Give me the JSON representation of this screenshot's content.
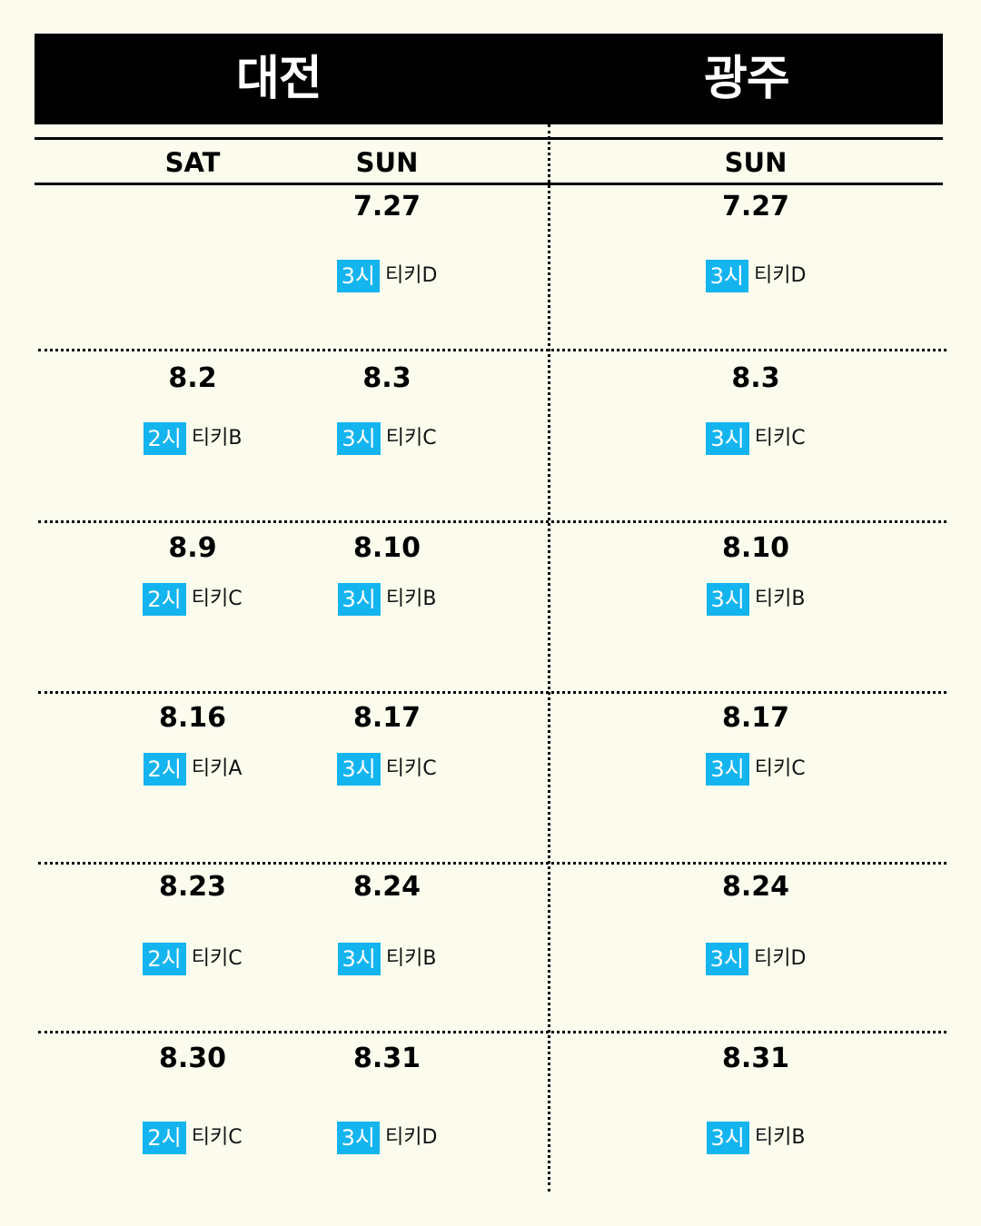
{
  "header": {
    "left_city": "대전",
    "right_city": "광주"
  },
  "columns": {
    "sat": "SAT",
    "sun": "SUN",
    "sun_right": "SUN"
  },
  "colors": {
    "background": "#fcfcee",
    "header_bar": "#000000",
    "badge": "#14b4ef"
  },
  "rows": [
    {
      "sat": null,
      "sun": {
        "date": "7.27",
        "time": "3시",
        "ticket": "티키D"
      },
      "gwangju": {
        "date": "7.27",
        "time": "3시",
        "ticket": "티키D"
      }
    },
    {
      "sat": {
        "date": "8.2",
        "time": "2시",
        "ticket": "티키B"
      },
      "sun": {
        "date": "8.3",
        "time": "3시",
        "ticket": "티키C"
      },
      "gwangju": {
        "date": "8.3",
        "time": "3시",
        "ticket": "티키C"
      }
    },
    {
      "sat": {
        "date": "8.9",
        "time": "2시",
        "ticket": "티키C"
      },
      "sun": {
        "date": "8.10",
        "time": "3시",
        "ticket": "티키B"
      },
      "gwangju": {
        "date": "8.10",
        "time": "3시",
        "ticket": "티키B"
      }
    },
    {
      "sat": {
        "date": "8.16",
        "time": "2시",
        "ticket": "티키A"
      },
      "sun": {
        "date": "8.17",
        "time": "3시",
        "ticket": "티키C"
      },
      "gwangju": {
        "date": "8.17",
        "time": "3시",
        "ticket": "티키C"
      }
    },
    {
      "sat": {
        "date": "8.23",
        "time": "2시",
        "ticket": "티키C"
      },
      "sun": {
        "date": "8.24",
        "time": "3시",
        "ticket": "티키B"
      },
      "gwangju": {
        "date": "8.24",
        "time": "3시",
        "ticket": "티키D"
      }
    },
    {
      "sat": {
        "date": "8.30",
        "time": "2시",
        "ticket": "티키C"
      },
      "sun": {
        "date": "8.31",
        "time": "3시",
        "ticket": "티키D"
      },
      "gwangju": {
        "date": "8.31",
        "time": "3시",
        "ticket": "티키B"
      }
    }
  ]
}
